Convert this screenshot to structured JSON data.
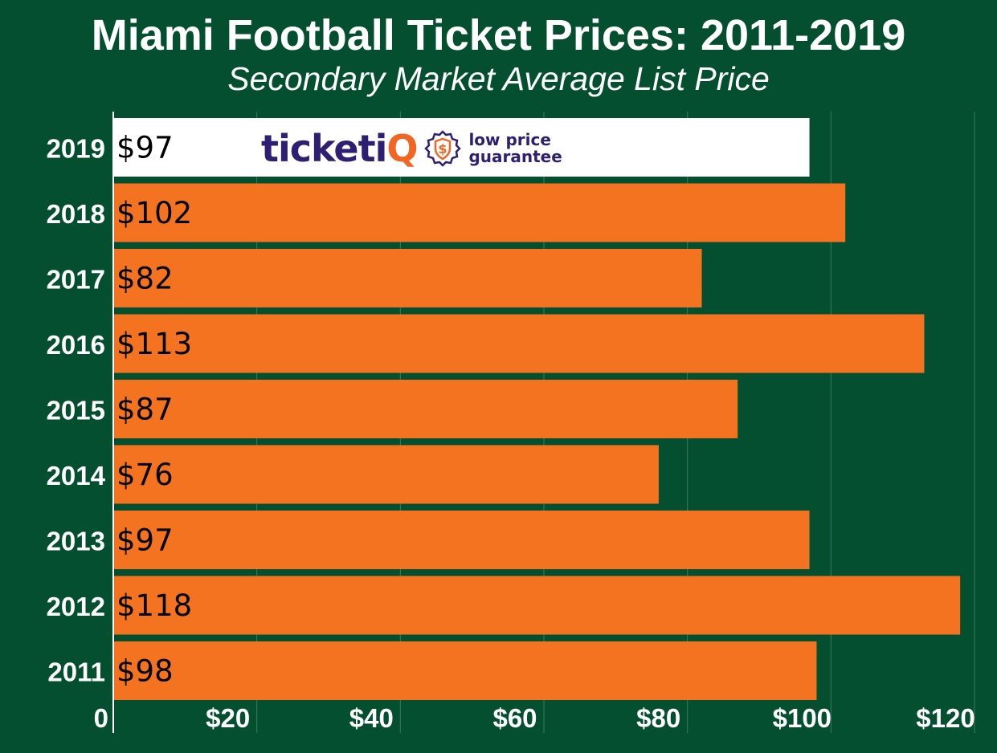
{
  "header": {
    "title": "Miami Football Ticket Prices: 2011-2019",
    "subtitle": "Secondary Market Average List Price"
  },
  "watermark": {
    "brand_main": "ticketi",
    "brand_accent": "Q",
    "badge_symbol": "$",
    "tagline_line1": "low price",
    "tagline_line2": "guarantee",
    "badge_icon": "shield-dollar-icon"
  },
  "colors": {
    "background": "#034f30",
    "bar": "#f47321",
    "highlight_bar": "#ffffff",
    "gridline": "#3f7a5c",
    "axis_text": "#ffffff",
    "value_text": "#000000",
    "brand_primary": "#2e1f73",
    "brand_accent": "#f26522"
  },
  "chart_data": {
    "type": "bar",
    "orientation": "horizontal",
    "title": "Miami Football Ticket Prices: 2011-2019",
    "subtitle": "Secondary Market Average List Price",
    "categories": [
      "2019",
      "2018",
      "2017",
      "2016",
      "2015",
      "2014",
      "2013",
      "2012",
      "2011"
    ],
    "values": [
      97,
      102,
      82,
      113,
      87,
      76,
      97,
      118,
      98
    ],
    "value_labels": [
      "$97",
      "$102",
      "$82",
      "$113",
      "$87",
      "$76",
      "$97",
      "$118",
      "$98"
    ],
    "highlight_category": "2019",
    "xlim": [
      0,
      120
    ],
    "x_ticks": [
      0,
      20,
      40,
      60,
      80,
      100,
      120
    ],
    "x_tick_labels": [
      "0",
      "$20",
      "$40",
      "$60",
      "$80",
      "$100",
      "$120"
    ],
    "grid": true,
    "legend": "none"
  }
}
